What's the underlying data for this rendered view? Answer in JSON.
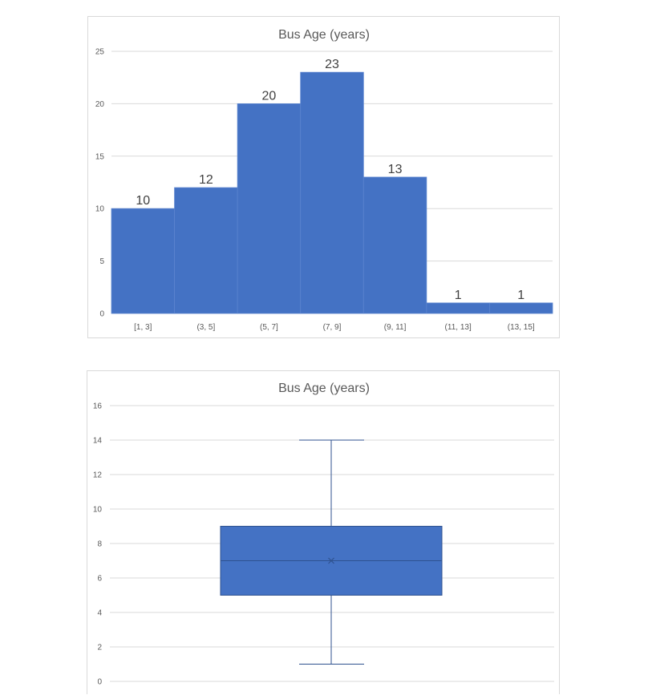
{
  "chart_data": [
    {
      "type": "bar",
      "subtype": "histogram",
      "title": "Bus Age (years)",
      "categories": [
        "[1, 3]",
        "(3, 5]",
        "(5, 7]",
        "(7, 9]",
        "(9, 11]",
        "(11, 13]",
        "(13, 15]"
      ],
      "values": [
        10,
        12,
        20,
        23,
        13,
        1,
        1
      ],
      "data_labels": [
        "10",
        "12",
        "20",
        "23",
        "13",
        "1",
        "1"
      ],
      "ylim": [
        0,
        25
      ],
      "yticks": [
        "0",
        "5",
        "10",
        "15",
        "20",
        "25"
      ],
      "grid": true,
      "legend": "none",
      "bar_color": "#4472C4"
    },
    {
      "type": "box",
      "title": "Bus Age (years)",
      "min": 1,
      "q1": 5,
      "median": 7,
      "mean": 7,
      "q3": 9,
      "max": 14,
      "ylim": [
        0,
        16
      ],
      "yticks": [
        "0",
        "2",
        "4",
        "6",
        "8",
        "10",
        "12",
        "14",
        "16"
      ],
      "grid": true,
      "legend": "none",
      "box_color": "#4472C4"
    }
  ]
}
